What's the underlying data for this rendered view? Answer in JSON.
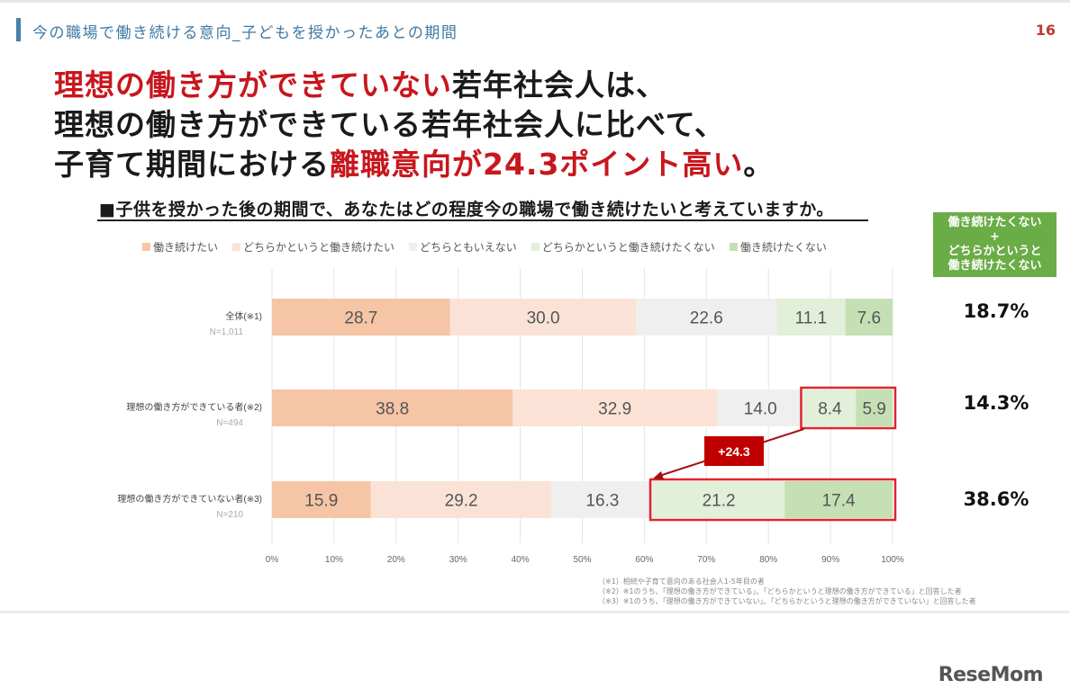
{
  "header": {
    "section_title": "今の職場で働き続ける意向_子どもを授かったあとの期間",
    "page_number": "16"
  },
  "headline": {
    "line1_red": "理想の働き方ができていない",
    "line1_black": "若年社会人は、",
    "line2": "理想の働き方ができている若年社会人に比べて、",
    "line3_black": "子育て期間における",
    "line3_red": "離職意向が24.3ポイント高い",
    "line3_end": "。"
  },
  "question": "■子供を授かった後の期間で、あなたはどの程度今の職場で働き続けたいと考えていますか。",
  "callout": {
    "line1": "働き続けたくない",
    "plus": "+",
    "line2": "どちらかというと",
    "line3": "働き続けたくない"
  },
  "chart_data": {
    "type": "bar",
    "stacked": true,
    "orientation": "horizontal",
    "categories": [
      "全体(※1)",
      "理想の働き方ができている者(※2)",
      "理想の働き方ができていない者(※3)"
    ],
    "sample_sizes": [
      "N=1,011",
      "N=494",
      "N=210"
    ],
    "series": [
      {
        "name": "働き続けたい",
        "color": "#f5c5a5",
        "values": [
          28.7,
          38.8,
          15.9
        ]
      },
      {
        "name": "どちらかというと働き続けたい",
        "color": "#fae3d6",
        "values": [
          30.0,
          32.9,
          29.2
        ]
      },
      {
        "name": "どちらともいえない",
        "color": "#efefef",
        "values": [
          22.6,
          14.0,
          16.3
        ]
      },
      {
        "name": "どちらかというと働き続けたくない",
        "color": "#e2efd9",
        "values": [
          11.1,
          8.4,
          21.2
        ]
      },
      {
        "name": "働き続けたくない",
        "color": "#c5e0b4",
        "values": [
          7.6,
          5.9,
          17.4
        ]
      }
    ],
    "xlim": [
      0,
      100
    ],
    "x_ticks": [
      "0%",
      "10%",
      "20%",
      "30%",
      "40%",
      "50%",
      "60%",
      "70%",
      "80%",
      "90%",
      "100%"
    ],
    "totals_not_continue": [
      "18.7%",
      "14.3%",
      "38.6%"
    ],
    "annotation": "+24.3",
    "highlight_color": "#e0242b"
  },
  "notes": [
    "（※1）相続や子育て意向のある社会人1-5年目の者",
    "（※2）※1のうち、「理想の働き方ができている」、「どちらかというと理想の働き方ができている」と回答した者",
    "（※3）※1のうち、「理想の働き方ができていない」、「どちらかというと理想の働き方ができていない」と回答した者"
  ],
  "brand": "ReseMom"
}
